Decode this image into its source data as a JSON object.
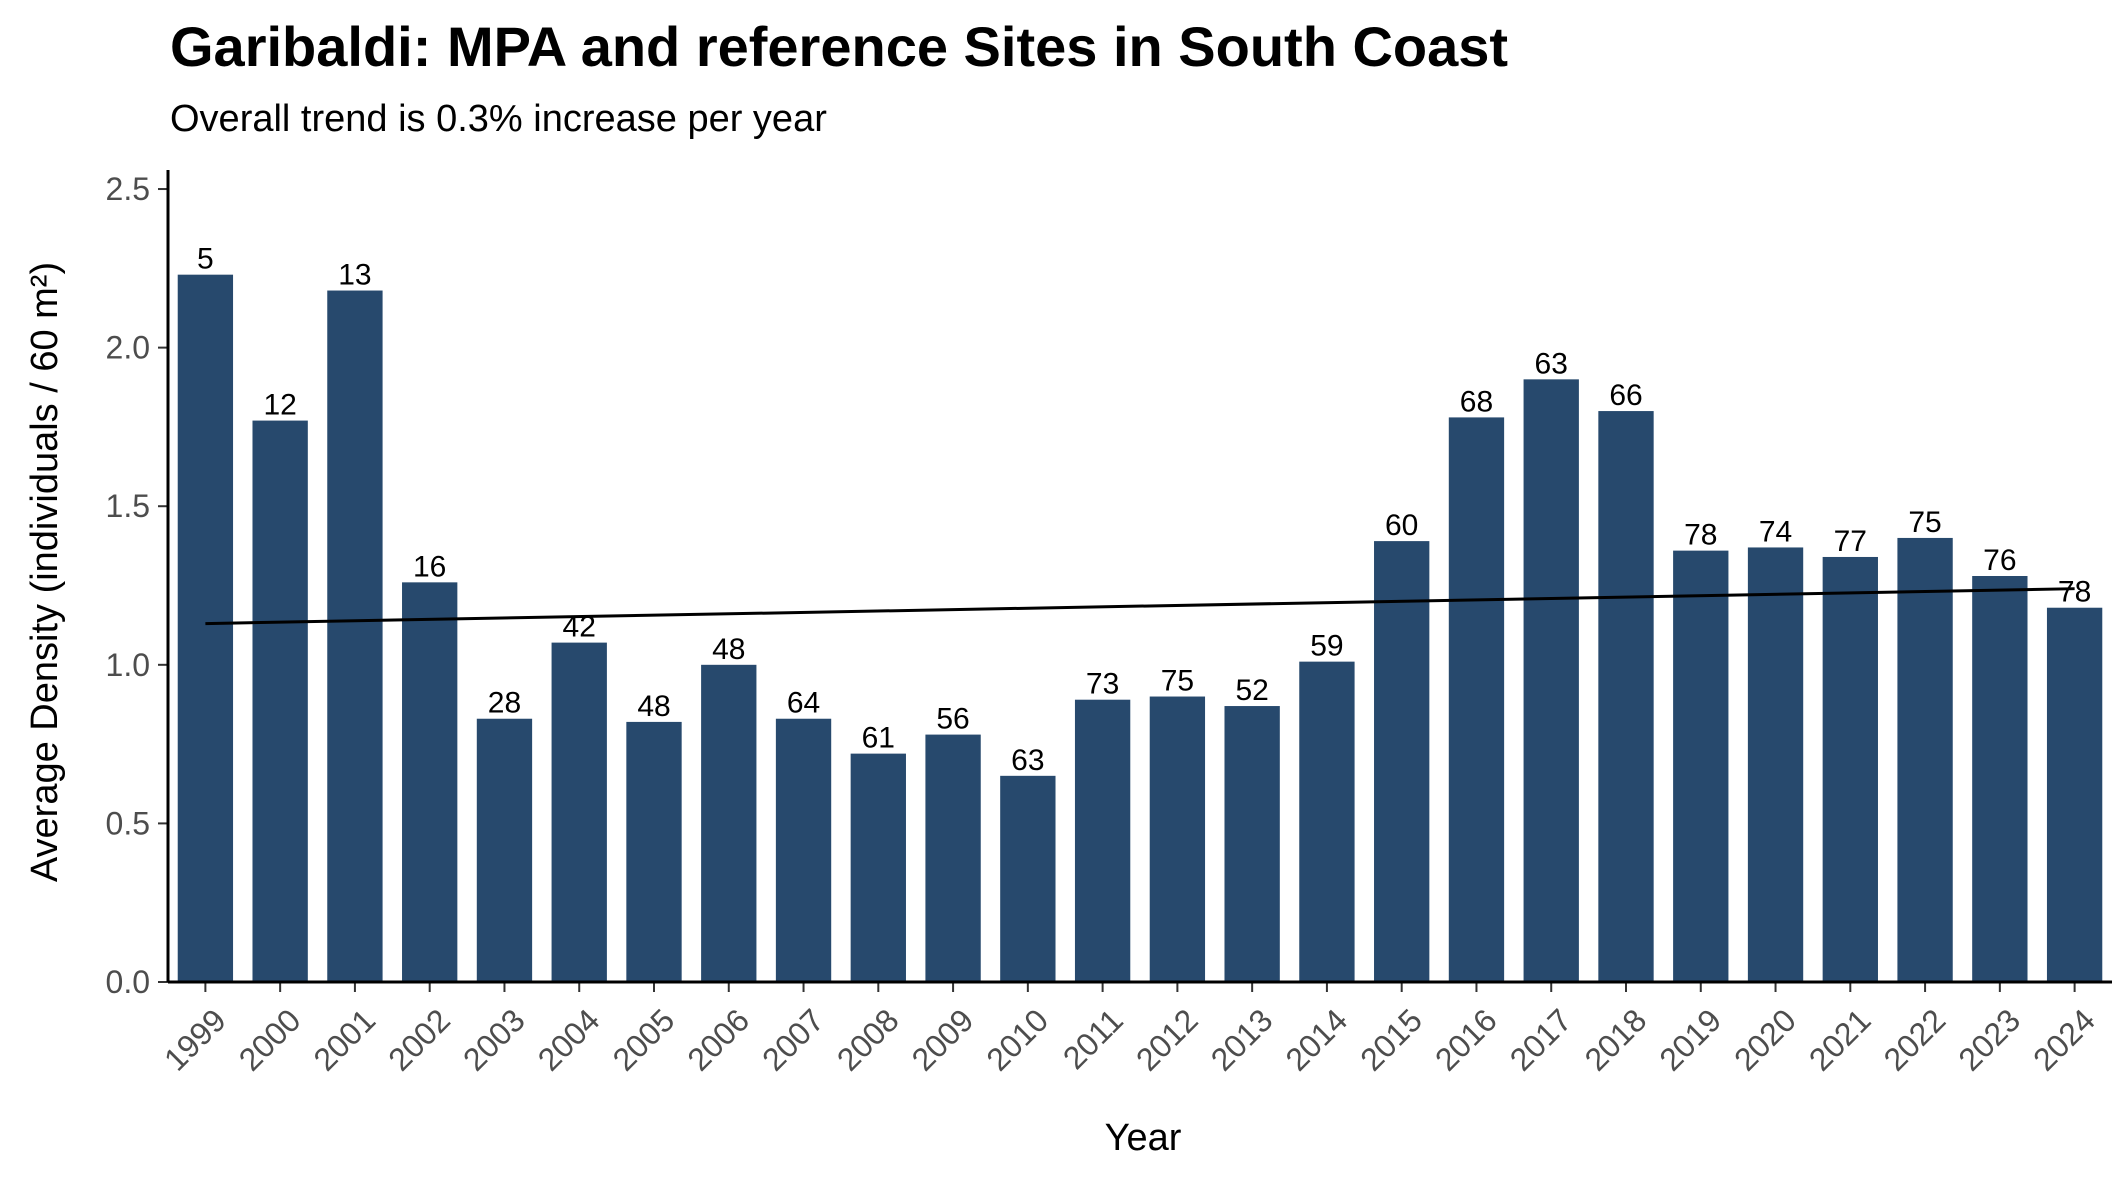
{
  "chart_data": {
    "type": "bar",
    "title": "Garibaldi: MPA and reference Sites in South Coast",
    "subtitle": "Overall trend is 0.3% increase per year",
    "xlabel": "Year",
    "ylabel": "Average Density (individuals / 60 m²)",
    "ylim": [
      0,
      2.56
    ],
    "yticks": [
      0.0,
      0.5,
      1.0,
      1.5,
      2.0,
      2.5
    ],
    "ytick_labels": [
      "0.0",
      "0.5",
      "1.0",
      "1.5",
      "2.0",
      "2.5"
    ],
    "grid": false,
    "categories": [
      "1999",
      "2000",
      "2001",
      "2002",
      "2003",
      "2004",
      "2005",
      "2006",
      "2007",
      "2008",
      "2009",
      "2010",
      "2011",
      "2012",
      "2013",
      "2014",
      "2015",
      "2016",
      "2017",
      "2018",
      "2019",
      "2020",
      "2021",
      "2022",
      "2023",
      "2024"
    ],
    "values": [
      2.23,
      1.77,
      2.18,
      1.26,
      0.83,
      1.07,
      0.82,
      1.0,
      0.83,
      0.72,
      0.78,
      0.65,
      0.89,
      0.9,
      0.87,
      1.01,
      1.39,
      1.78,
      1.9,
      1.8,
      1.36,
      1.37,
      1.34,
      1.4,
      1.28,
      1.18
    ],
    "bar_labels": [
      "5",
      "12",
      "13",
      "16",
      "28",
      "42",
      "48",
      "48",
      "64",
      "61",
      "56",
      "63",
      "73",
      "75",
      "52",
      "59",
      "60",
      "68",
      "63",
      "66",
      "78",
      "74",
      "77",
      "75",
      "76",
      "78"
    ],
    "trend_line": {
      "start": 1.13,
      "end": 1.24
    },
    "bar_color": "#27496d",
    "trend_color": "#000000"
  }
}
